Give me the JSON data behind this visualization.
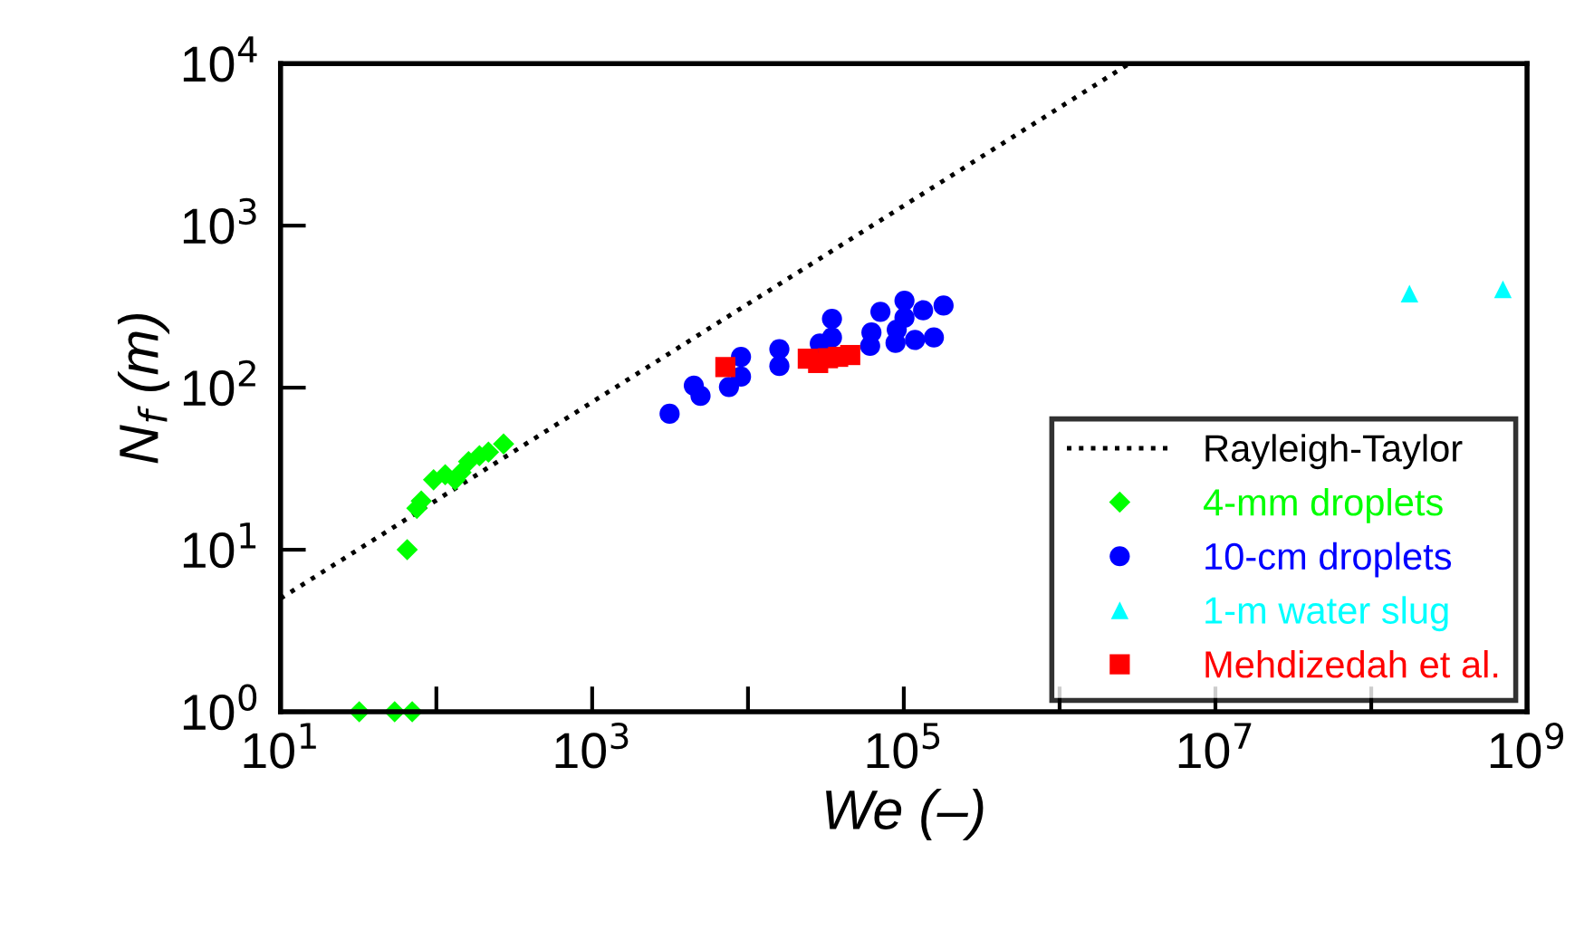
{
  "chart_data": {
    "type": "scatter",
    "xlabel": "We (–)",
    "ylabel": "N$_{f}$ (m)",
    "log": "xy",
    "xlim": [
      10,
      1000000000
    ],
    "ylim": [
      1,
      10000
    ],
    "xticks": [
      {
        "value": 10,
        "label": "10$^{1}$"
      },
      {
        "value": 100,
        "label": null
      },
      {
        "value": 1000,
        "label": "10$^{3}$"
      },
      {
        "value": 10000,
        "label": null
      },
      {
        "value": 100000,
        "label": "10$^{5}$"
      },
      {
        "value": 1000000,
        "label": null
      },
      {
        "value": 10000000,
        "label": "10$^{7}$"
      },
      {
        "value": 100000000,
        "label": null
      },
      {
        "value": 1000000000,
        "label": "10$^{9}$"
      }
    ],
    "yticks": [
      {
        "value": 1,
        "label": "10$^{0}$"
      },
      {
        "value": 10,
        "label": "10$^{1}$"
      },
      {
        "value": 100,
        "label": "10$^{2}$"
      },
      {
        "value": 1000,
        "label": "10$^{3}$"
      },
      {
        "value": 10000,
        "label": "10$^{4}$"
      }
    ],
    "grid": false,
    "legend": "bottom right",
    "series": [
      {
        "name": "Rayleigh-Taylor",
        "type": "line",
        "color": "#000000",
        "line_style": "dotted",
        "marker": "none",
        "x": [
          10,
          2800000
        ],
        "values": [
          5,
          10000
        ]
      },
      {
        "name": "4-mm droplets",
        "color": "#00ff00",
        "marker": "diamond",
        "x": [
          32,
          54,
          70,
          65,
          75,
          80,
          96,
          114,
          132,
          144,
          161,
          189,
          216,
          270
        ],
        "values": [
          1,
          1,
          1,
          10,
          18,
          20,
          27,
          29,
          27,
          30,
          35,
          38,
          40,
          45
        ]
      },
      {
        "name": "10-cm droplets",
        "color": "#0000ff",
        "marker": "circle",
        "x": [
          3140,
          4490,
          4960,
          7550,
          9020,
          9020,
          15900,
          15900,
          28900,
          34600,
          34600,
          60800,
          62000,
          70800,
          88500,
          90100,
          101000,
          101000,
          118000,
          133000,
          156000,
          180000
        ],
        "values": [
          69,
          103,
          89,
          101,
          117,
          155,
          136,
          173,
          187,
          204,
          266,
          181,
          219,
          294,
          189,
          228,
          344,
          270,
          197,
          300,
          204,
          321
        ]
      },
      {
        "name": "1-m water slug",
        "color": "#00ffff",
        "marker": "triangle",
        "x": [
          176000000,
          700000000
        ],
        "values": [
          381,
          405
        ]
      },
      {
        "name": "Mehdizedah et al.",
        "color": "#ff0000",
        "marker": "square",
        "x": [
          7160,
          24200,
          28200,
          32600,
          37900,
          45300
        ],
        "values": [
          134,
          151,
          142,
          152,
          155,
          159
        ]
      }
    ]
  }
}
